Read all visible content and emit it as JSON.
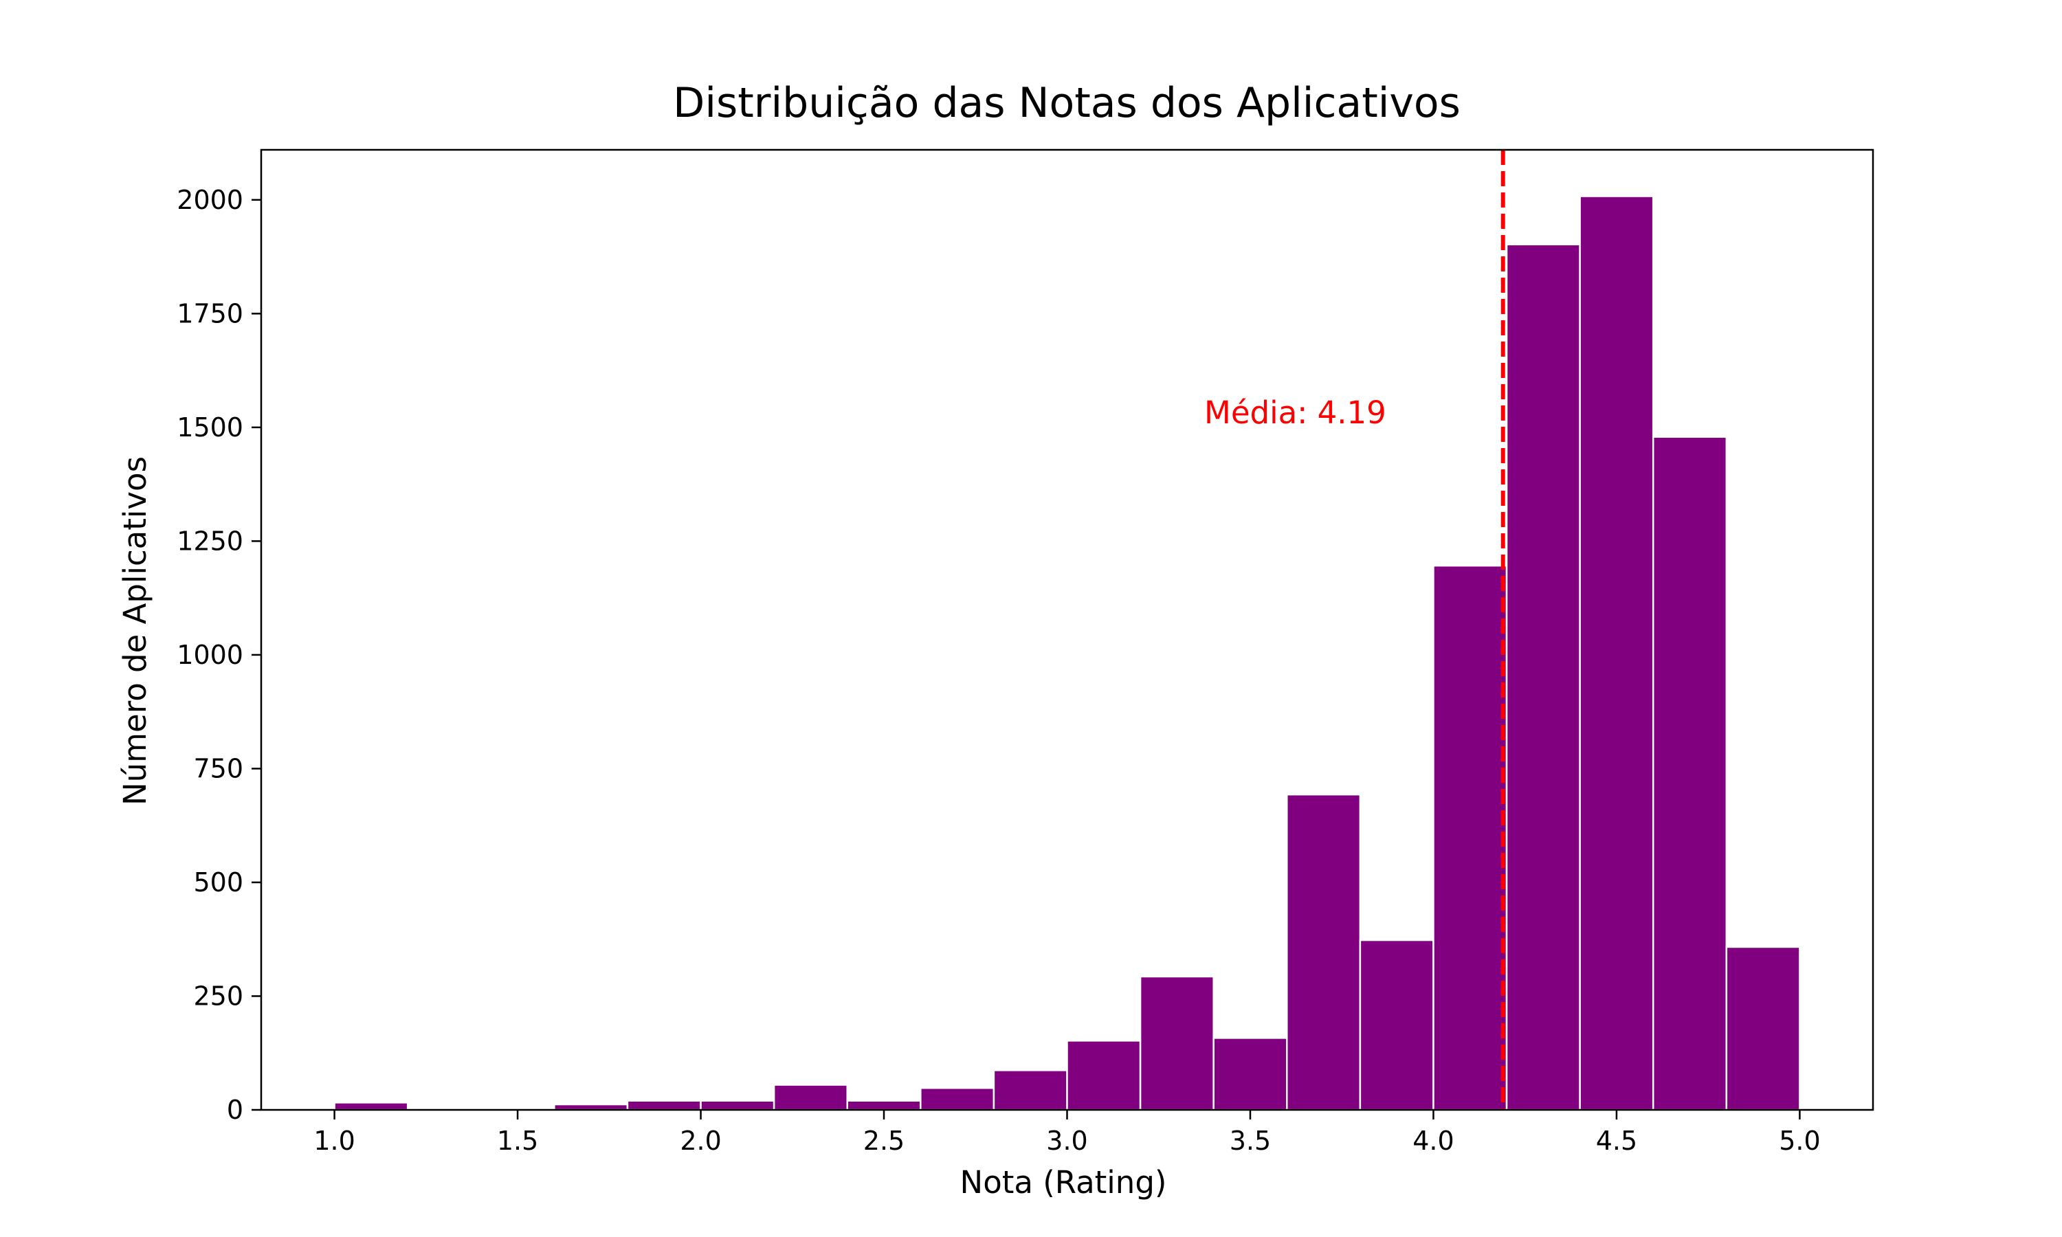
{
  "chart_data": {
    "type": "bar",
    "title": "Distribuição das Notas dos Aplicativos",
    "xlabel": "Nota (Rating)",
    "ylabel": "Número de Aplicativos",
    "xlim": [
      0.8,
      5.2
    ],
    "ylim": [
      0,
      2110
    ],
    "x_ticks": [
      "1.0",
      "1.5",
      "2.0",
      "2.5",
      "3.0",
      "3.5",
      "4.0",
      "4.5",
      "5.0"
    ],
    "y_ticks": [
      "0",
      "250",
      "500",
      "750",
      "1000",
      "1250",
      "1500",
      "1750",
      "2000"
    ],
    "bar_color": "#800080",
    "bar_edge_color": "#ffffff",
    "bin_edges": [
      1.0,
      1.2,
      1.4,
      1.6,
      1.8,
      2.0,
      2.2,
      2.4,
      2.6,
      2.8,
      3.0,
      3.2,
      3.4,
      3.6,
      3.8,
      4.0,
      4.2,
      4.4,
      4.6,
      4.8,
      5.0
    ],
    "values": [
      16,
      0,
      0,
      12,
      20,
      20,
      55,
      20,
      48,
      87,
      152,
      293,
      158,
      693,
      373,
      1196,
      1902,
      2008,
      1479,
      358
    ],
    "mean_line": {
      "value": 4.19,
      "color": "#ff0000",
      "style": "dashed"
    },
    "annotation": {
      "text": "Média: 4.19",
      "color": "#ff0000"
    },
    "grid": false,
    "legend": "none"
  }
}
